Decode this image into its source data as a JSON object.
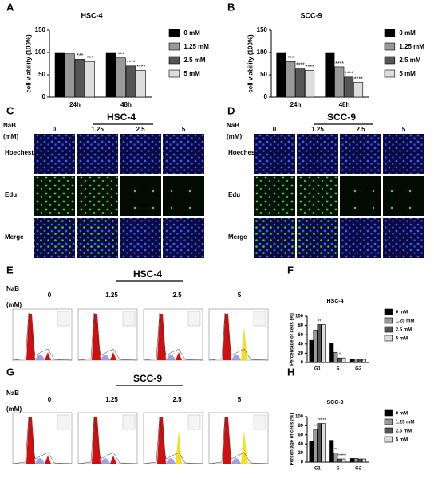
{
  "chart_data": [
    {
      "type": "bar",
      "title": "HSC-4",
      "y_label": "cell viability (100%)",
      "categories": [
        "24h",
        "48h"
      ],
      "ylim": [
        0,
        150
      ],
      "yticks": [
        0,
        50,
        100,
        150
      ],
      "grid": false,
      "series": [
        {
          "name": "0 mM",
          "color": "#000000",
          "values": [
            100,
            100
          ],
          "significance": [
            null,
            null
          ]
        },
        {
          "name": "1.25 mM",
          "color": "#999999",
          "values": [
            97,
            88
          ],
          "significance": [
            null,
            "***"
          ]
        },
        {
          "name": "2.5 mM",
          "color": "#555555",
          "values": [
            85,
            70
          ],
          "significance": [
            "***",
            "****"
          ]
        },
        {
          "name": "5 mM",
          "color": "#dddddd",
          "values": [
            80,
            60
          ],
          "significance": [
            "***",
            "****"
          ]
        }
      ]
    },
    {
      "type": "bar",
      "title": "SCC-9",
      "y_label": "cell viability (100%)",
      "categories": [
        "24h",
        "48h"
      ],
      "ylim": [
        0,
        150
      ],
      "yticks": [
        0,
        50,
        100,
        150
      ],
      "grid": false,
      "series": [
        {
          "name": "0 mM",
          "color": "#000000",
          "values": [
            100,
            100
          ],
          "significance": [
            null,
            null
          ]
        },
        {
          "name": "1.25 mM",
          "color": "#999999",
          "values": [
            80,
            68
          ],
          "significance": [
            "***",
            "****"
          ]
        },
        {
          "name": "2.5 mM",
          "color": "#555555",
          "values": [
            65,
            45
          ],
          "significance": [
            "****",
            "****"
          ]
        },
        {
          "name": "5 mM",
          "color": "#dddddd",
          "values": [
            60,
            33
          ],
          "significance": [
            "****",
            "****"
          ]
        }
      ]
    },
    {
      "type": "bar",
      "title": "HSC-4",
      "y_label": "Percentage of cells (%)",
      "categories": [
        "G1",
        "S",
        "G2"
      ],
      "ylim": [
        0,
        100
      ],
      "yticks": [
        0,
        20,
        40,
        60,
        80,
        100
      ],
      "grid": false,
      "series": [
        {
          "name": "0 mM",
          "color": "#000000",
          "values": [
            48,
            42,
            8
          ],
          "significance": [
            null,
            null,
            null
          ]
        },
        {
          "name": "1.25 mM",
          "color": "#999999",
          "values": [
            70,
            22,
            8
          ],
          "significance": [
            null,
            null,
            null
          ]
        },
        {
          "name": "2.5 mM",
          "color": "#555555",
          "values": [
            82,
            10,
            8
          ],
          "significance": [
            "**",
            "*",
            null
          ]
        },
        {
          "name": "5 mM",
          "color": "#dddddd",
          "values": [
            82,
            10,
            7
          ],
          "significance": [
            null,
            null,
            null
          ]
        }
      ]
    },
    {
      "type": "bar",
      "title": "SCC-9",
      "y_label": "Percentage of cells (%)",
      "categories": [
        "G1",
        "S",
        "G2"
      ],
      "ylim": [
        0,
        100
      ],
      "yticks": [
        0,
        20,
        40,
        60,
        80,
        100
      ],
      "grid": false,
      "series": [
        {
          "name": "0 mM",
          "color": "#000000",
          "values": [
            45,
            48,
            8
          ],
          "significance": [
            null,
            null,
            null
          ]
        },
        {
          "name": "1.25 mM",
          "color": "#999999",
          "values": [
            72,
            20,
            8
          ],
          "significance": [
            "**",
            "**",
            null
          ]
        },
        {
          "name": "2.5 mM",
          "color": "#555555",
          "values": [
            85,
            7,
            7
          ],
          "significance": [
            "***",
            "***",
            null
          ]
        },
        {
          "name": "5 mM",
          "color": "#dddddd",
          "values": [
            85,
            7,
            7
          ],
          "significance": [
            "***",
            "***",
            null
          ]
        }
      ]
    }
  ],
  "letters": [
    "A",
    "B",
    "C",
    "D",
    "E",
    "F",
    "G",
    "H"
  ],
  "panel_C": {
    "title": "HSC-4",
    "nab": "NaB",
    "unit": "(mM)",
    "doses": [
      "0",
      "1.25",
      "2.5",
      "5"
    ],
    "rows": [
      "Hoechest",
      "Edu",
      "Merge"
    ]
  },
  "panel_D": {
    "title": "SCC-9",
    "nab": "NaB",
    "unit": "(mM)",
    "doses": [
      "0",
      "1.25",
      "2.5",
      "5"
    ],
    "rows": [
      "Hoechest",
      "Edu",
      "Merge"
    ]
  },
  "panel_E": {
    "title": "HSC-4",
    "nab": "NaB",
    "unit": "(mM)",
    "doses": [
      "0",
      "1.25",
      "2.5",
      "5"
    ]
  },
  "panel_G": {
    "title": "SCC-9",
    "nab": "NaB",
    "unit": "(mM)",
    "doses": [
      "0",
      "1.25",
      "2.5",
      "5"
    ]
  }
}
